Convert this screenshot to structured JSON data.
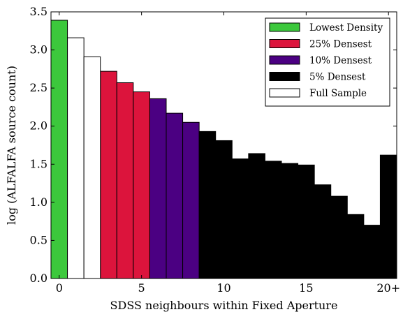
{
  "chart_data": {
    "type": "bar",
    "title": "",
    "xlabel": "SDSS neighbours within Fixed Aperture",
    "ylabel": "log (ALFALFA source count)",
    "ylim": [
      0,
      3.5
    ],
    "xlim": [
      -0.5,
      20.5
    ],
    "x_ticks": [
      {
        "value": 0,
        "label": "0"
      },
      {
        "value": 5,
        "label": "5"
      },
      {
        "value": 10,
        "label": "10"
      },
      {
        "value": 15,
        "label": "15"
      },
      {
        "value": 20,
        "label": "20+"
      }
    ],
    "y_ticks": [
      0.0,
      0.5,
      1.0,
      1.5,
      2.0,
      2.5,
      3.0,
      3.5
    ],
    "y_tick_labels": [
      "0.0",
      "0.5",
      "1.0",
      "1.5",
      "2.0",
      "2.5",
      "3.0",
      "3.5"
    ],
    "legend_position": "top-right",
    "series": [
      {
        "name": "Lowest Density",
        "color": "#3cc83c",
        "x": [
          0
        ],
        "values": [
          3.39
        ]
      },
      {
        "name": "25% Densest",
        "color": "#dc143c",
        "x": [
          3,
          4,
          5
        ],
        "values": [
          2.72,
          2.57,
          2.45
        ]
      },
      {
        "name": "10% Densest",
        "color": "#4b0082",
        "x": [
          6,
          7,
          8
        ],
        "values": [
          2.36,
          2.17,
          2.05
        ]
      },
      {
        "name": "5% Densest",
        "color": "#000000",
        "x": [
          9,
          10,
          11,
          12,
          13,
          14,
          15,
          16,
          17,
          18,
          19,
          20
        ],
        "values": [
          1.93,
          1.81,
          1.57,
          1.64,
          1.54,
          1.51,
          1.49,
          1.23,
          1.08,
          0.84,
          0.7,
          1.62
        ]
      },
      {
        "name": "Full Sample",
        "color": "#ffffff",
        "x": [
          1,
          2
        ],
        "values": [
          3.16,
          2.91
        ]
      }
    ]
  }
}
